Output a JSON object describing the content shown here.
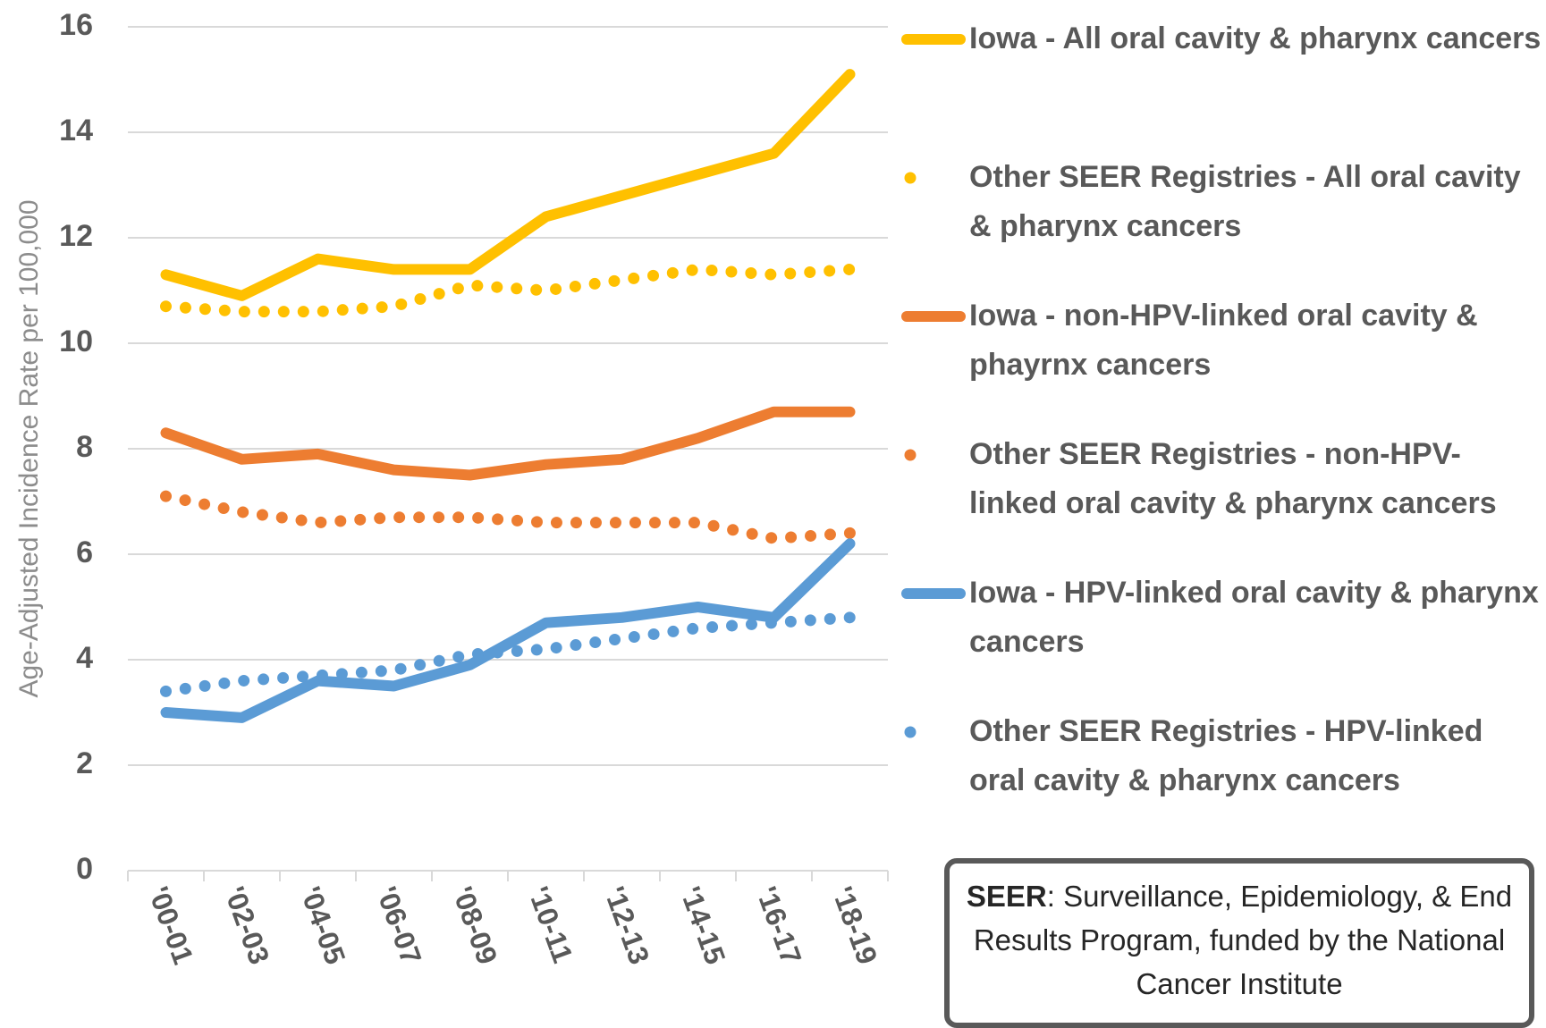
{
  "chart_data": {
    "type": "line",
    "ylabel": "Age-Adjusted Incidence Rate per 100,000",
    "categories": [
      "'00-01",
      "'02-03",
      "'04-05",
      "'06-07",
      "'08-09",
      "'10-11",
      "'12-13",
      "'14-15",
      "'16-17",
      "'18-19"
    ],
    "series": [
      {
        "name": "Iowa - All oral cavity & pharynx cancers",
        "color": "#FFC000",
        "style": "solid",
        "values": [
          11.3,
          10.9,
          11.6,
          11.4,
          11.4,
          12.4,
          12.8,
          13.2,
          13.6,
          15.1
        ]
      },
      {
        "name": "Other SEER Registries - All oral cavity & pharynx cancers",
        "color": "#FFC000",
        "style": "dotted",
        "values": [
          10.7,
          10.6,
          10.6,
          10.7,
          11.1,
          11.0,
          11.2,
          11.4,
          11.3,
          11.4
        ]
      },
      {
        "name": "Iowa - non-HPV-linked oral cavity & phayrnx cancers",
        "color": "#ED7D31",
        "style": "solid",
        "values": [
          8.3,
          7.8,
          7.9,
          7.6,
          7.5,
          7.7,
          7.8,
          8.2,
          8.7,
          8.7
        ]
      },
      {
        "name": "Other SEER Registries - non-HPV-linked oral cavity & pharynx cancers",
        "color": "#ED7D31",
        "style": "dotted",
        "values": [
          7.1,
          6.8,
          6.6,
          6.7,
          6.7,
          6.6,
          6.6,
          6.6,
          6.3,
          6.4
        ]
      },
      {
        "name": "Iowa - HPV-linked oral cavity & pharynx cancers",
        "color": "#5B9BD5",
        "style": "solid",
        "values": [
          3.0,
          2.9,
          3.6,
          3.5,
          3.9,
          4.7,
          4.8,
          5.0,
          4.8,
          6.2
        ]
      },
      {
        "name": "Other SEER Registries - HPV-linked oral cavity & pharynx cancers",
        "color": "#5B9BD5",
        "style": "dotted",
        "values": [
          3.4,
          3.6,
          3.7,
          3.8,
          4.1,
          4.2,
          4.4,
          4.6,
          4.7,
          4.8
        ]
      }
    ],
    "ylim": [
      0,
      16
    ],
    "yticks": [
      0,
      2,
      4,
      6,
      8,
      10,
      12,
      14,
      16
    ],
    "grid": true,
    "legend": "right",
    "annotation": {
      "term": "SEER",
      "text": ": Surveillance, Epidemiology, & End Results Program, funded by the National Cancer Institute"
    }
  }
}
